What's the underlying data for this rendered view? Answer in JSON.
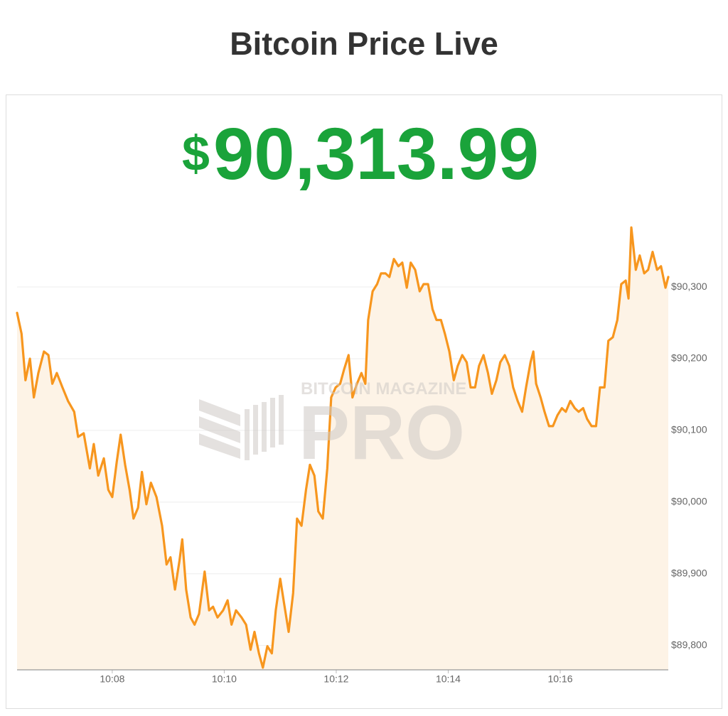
{
  "title": "Bitcoin Price Live",
  "price": {
    "symbol": "$",
    "amount": "90,313.99"
  },
  "watermark": {
    "brand": "BITCOIN MAGAZINE",
    "product": "PRO"
  },
  "chart_data": {
    "type": "line",
    "color": "#f7961e",
    "fill_color": "#fdf3e6",
    "grid": true,
    "xlim": [
      6.3,
      17.93
    ],
    "ylim": [
      89766,
      90413
    ],
    "xticks": [
      {
        "value": 8,
        "label": "10:08"
      },
      {
        "value": 10,
        "label": "10:10"
      },
      {
        "value": 12,
        "label": "10:12"
      },
      {
        "value": 14,
        "label": "10:14"
      },
      {
        "value": 16,
        "label": "10:16"
      }
    ],
    "yticks": [
      {
        "value": 89800,
        "label": "$89,800"
      },
      {
        "value": 89900,
        "label": "$89,900"
      },
      {
        "value": 90000,
        "label": "$90,000"
      },
      {
        "value": 90100,
        "label": "$90,100"
      },
      {
        "value": 90200,
        "label": "$90,200"
      },
      {
        "value": 90300,
        "label": "$90,300"
      }
    ],
    "x": [
      6.3,
      6.38,
      6.45,
      6.53,
      6.6,
      6.68,
      6.78,
      6.86,
      6.93,
      7.01,
      7.11,
      7.21,
      7.32,
      7.39,
      7.49,
      7.6,
      7.67,
      7.75,
      7.85,
      7.93,
      8.0,
      8.08,
      8.15,
      8.23,
      8.31,
      8.38,
      8.46,
      8.53,
      8.61,
      8.69,
      8.79,
      8.89,
      8.97,
      9.04,
      9.12,
      9.2,
      9.25,
      9.32,
      9.4,
      9.47,
      9.55,
      9.65,
      9.73,
      9.8,
      9.88,
      9.98,
      10.06,
      10.13,
      10.21,
      10.31,
      10.39,
      10.47,
      10.54,
      10.62,
      10.69,
      10.77,
      10.85,
      10.92,
      11.0,
      11.07,
      11.15,
      11.23,
      11.3,
      11.38,
      11.46,
      11.53,
      11.61,
      11.68,
      11.76,
      11.84,
      11.91,
      11.99,
      12.07,
      12.14,
      12.22,
      12.29,
      12.37,
      12.45,
      12.52,
      12.57,
      12.65,
      12.73,
      12.8,
      12.88,
      12.95,
      13.03,
      13.11,
      13.18,
      13.26,
      13.33,
      13.41,
      13.49,
      13.56,
      13.64,
      13.72,
      13.79,
      13.87,
      13.94,
      14.02,
      14.1,
      14.17,
      14.25,
      14.33,
      14.4,
      14.48,
      14.55,
      14.63,
      14.71,
      14.78,
      14.86,
      14.93,
      15.01,
      15.09,
      15.16,
      15.24,
      15.32,
      15.39,
      15.47,
      15.52,
      15.57,
      15.65,
      15.72,
      15.8,
      15.87,
      15.95,
      16.03,
      16.1,
      16.18,
      16.26,
      16.33,
      16.41,
      16.48,
      16.56,
      16.64,
      16.71,
      16.79,
      16.86,
      16.94,
      17.02,
      17.09,
      17.17,
      17.22,
      17.27,
      17.35,
      17.42,
      17.5,
      17.57,
      17.65,
      17.73,
      17.8,
      17.88,
      17.93
    ],
    "values": [
      90264,
      90235,
      90170,
      90200,
      90146,
      90180,
      90210,
      90205,
      90165,
      90180,
      90160,
      90141,
      90126,
      90091,
      90096,
      90047,
      90081,
      90037,
      90061,
      90017,
      90007,
      90056,
      90094,
      90052,
      90017,
      89977,
      89992,
      90042,
      89997,
      90027,
      90007,
      89967,
      89913,
      89923,
      89878,
      89918,
      89948,
      89878,
      89839,
      89829,
      89844,
      89903,
      89849,
      89854,
      89839,
      89849,
      89863,
      89829,
      89849,
      89839,
      89829,
      89794,
      89819,
      89789,
      89769,
      89799,
      89789,
      89849,
      89893,
      89858,
      89819,
      89873,
      89977,
      89967,
      90017,
      90052,
      90037,
      89987,
      89977,
      90047,
      90146,
      90160,
      90165,
      90185,
      90205,
      90146,
      90165,
      90180,
      90165,
      90254,
      90294,
      90304,
      90319,
      90319,
      90314,
      90339,
      90329,
      90334,
      90299,
      90334,
      90324,
      90294,
      90304,
      90304,
      90269,
      90254,
      90254,
      90235,
      90210,
      90170,
      90190,
      90205,
      90195,
      90160,
      90160,
      90190,
      90205,
      90180,
      90151,
      90170,
      90195,
      90205,
      90190,
      90160,
      90141,
      90126,
      90160,
      90195,
      90210,
      90165,
      90146,
      90126,
      90106,
      90106,
      90121,
      90131,
      90126,
      90141,
      90131,
      90126,
      90131,
      90116,
      90106,
      90106,
      90160,
      90160,
      90225,
      90230,
      90254,
      90304,
      90309,
      90284,
      90383,
      90324,
      90344,
      90319,
      90324,
      90349,
      90324,
      90329,
      90299,
      90314
    ]
  }
}
